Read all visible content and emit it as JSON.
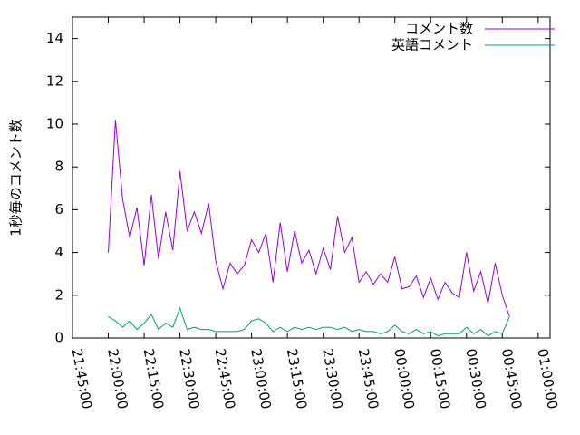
{
  "chart_data": {
    "type": "line",
    "y_label": "1秒毎のコメント数",
    "x": [
      "22:00:00",
      "22:03:00",
      "22:06:00",
      "22:09:00",
      "22:12:00",
      "22:15:00",
      "22:18:00",
      "22:21:00",
      "22:24:00",
      "22:27:00",
      "22:30:00",
      "22:33:00",
      "22:36:00",
      "22:39:00",
      "22:42:00",
      "22:45:00",
      "22:48:00",
      "22:51:00",
      "22:54:00",
      "22:57:00",
      "23:00:00",
      "23:03:00",
      "23:06:00",
      "23:09:00",
      "23:12:00",
      "23:15:00",
      "23:18:00",
      "23:21:00",
      "23:24:00",
      "23:27:00",
      "23:30:00",
      "23:33:00",
      "23:36:00",
      "23:39:00",
      "23:42:00",
      "23:45:00",
      "23:48:00",
      "23:51:00",
      "23:54:00",
      "23:57:00",
      "00:00:00",
      "00:03:00",
      "00:06:00",
      "00:09:00",
      "00:12:00",
      "00:15:00",
      "00:18:00",
      "00:21:00",
      "00:24:00",
      "00:27:00",
      "00:30:00",
      "00:33:00",
      "00:36:00",
      "00:39:00",
      "00:42:00",
      "00:45:00",
      "00:48:00"
    ],
    "series": [
      {
        "name": "コメント数",
        "color": "#9400d3",
        "values": [
          4.0,
          10.2,
          6.5,
          4.7,
          6.1,
          3.4,
          6.7,
          3.7,
          5.9,
          4.1,
          7.8,
          5.0,
          5.9,
          4.9,
          6.3,
          3.6,
          2.3,
          3.5,
          3.0,
          3.4,
          4.6,
          4.0,
          4.9,
          2.6,
          5.4,
          3.1,
          5.0,
          3.5,
          4.1,
          3.0,
          4.2,
          3.2,
          5.7,
          4.0,
          4.7,
          2.6,
          3.1,
          2.5,
          3.0,
          2.6,
          3.8,
          2.3,
          2.4,
          2.9,
          1.9,
          2.8,
          1.8,
          2.6,
          2.1,
          1.9,
          4.0,
          2.2,
          3.1,
          1.6,
          3.5,
          2.0,
          1.0
        ]
      },
      {
        "name": "英語コメント",
        "color": "#009e73",
        "values": [
          1.0,
          0.8,
          0.5,
          0.8,
          0.4,
          0.7,
          1.1,
          0.4,
          0.7,
          0.5,
          1.4,
          0.4,
          0.5,
          0.4,
          0.4,
          0.3,
          0.3,
          0.3,
          0.3,
          0.4,
          0.8,
          0.9,
          0.7,
          0.3,
          0.5,
          0.3,
          0.5,
          0.4,
          0.5,
          0.4,
          0.5,
          0.5,
          0.4,
          0.5,
          0.3,
          0.4,
          0.3,
          0.3,
          0.2,
          0.3,
          0.6,
          0.3,
          0.2,
          0.4,
          0.2,
          0.3,
          0.1,
          0.2,
          0.2,
          0.2,
          0.5,
          0.2,
          0.4,
          0.1,
          0.3,
          0.2,
          1.0
        ]
      }
    ],
    "xlim": [
      "21:45:00",
      "01:05:00"
    ],
    "xticks": [
      "21:45:00",
      "22:00:00",
      "22:15:00",
      "22:30:00",
      "22:45:00",
      "23:00:00",
      "23:15:00",
      "23:30:00",
      "23:45:00",
      "00:00:00",
      "00:15:00",
      "00:30:00",
      "00:45:00",
      "01:00:00"
    ],
    "ylim": [
      0,
      15
    ],
    "yticks": [
      0,
      2,
      4,
      6,
      8,
      10,
      12,
      14
    ],
    "legend": "top-right"
  }
}
